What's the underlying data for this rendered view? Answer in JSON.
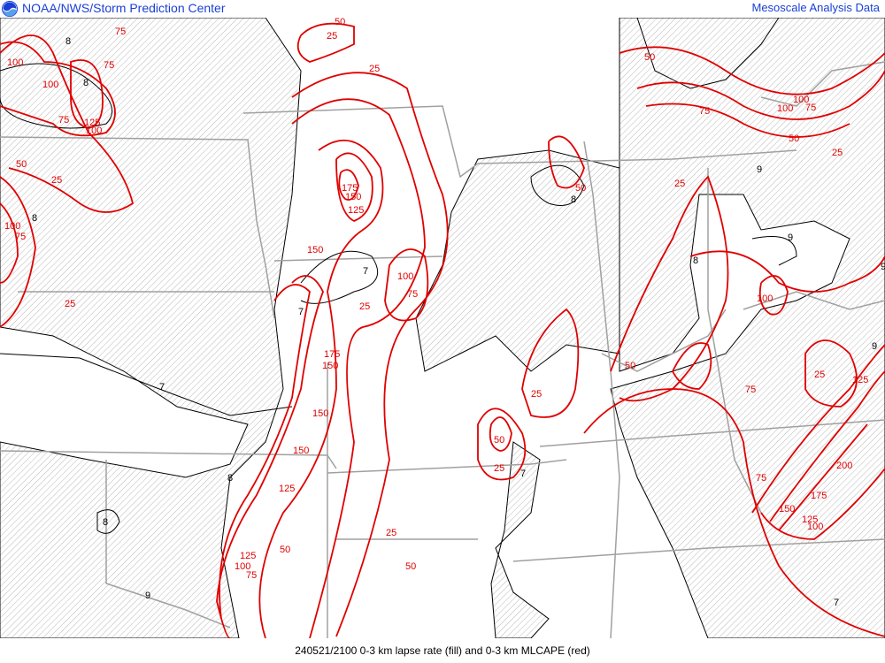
{
  "header": {
    "organization": "NOAA/NWS/Storm Prediction Center",
    "product": "Mesoscale Analysis Data",
    "logo_icon": "noaa-logo-icon"
  },
  "footer": {
    "caption": "240521/2100 0-3 km lapse rate (fill) and 0-3 km MLCAPE (red)"
  },
  "map": {
    "colors": {
      "cape_contour": "#e00000",
      "lapse_contour": "#000000",
      "borders": "#a0a0a0",
      "hatch": "#b0b0b0"
    },
    "cape_labels": [
      "50",
      "25",
      "75",
      "100",
      "75",
      "100",
      "75",
      "125",
      "100",
      "50",
      "25",
      "100",
      "75",
      "25",
      "25",
      "175",
      "150",
      "125",
      "150",
      "100",
      "75",
      "25",
      "175",
      "150",
      "150",
      "150",
      "125",
      "125",
      "100",
      "75",
      "50",
      "25",
      "50",
      "50",
      "25",
      "25",
      "50",
      "25",
      "50",
      "75",
      "100",
      "100",
      "75",
      "50",
      "25",
      "100",
      "125",
      "25",
      "50",
      "75",
      "200",
      "175",
      "150",
      "125",
      "100",
      "75"
    ],
    "lapse_labels": [
      "8",
      "8",
      "8",
      "7",
      "7",
      "7",
      "7",
      "8",
      "8",
      "8",
      "9",
      "8",
      "9",
      "7",
      "9",
      "9",
      "9"
    ]
  }
}
